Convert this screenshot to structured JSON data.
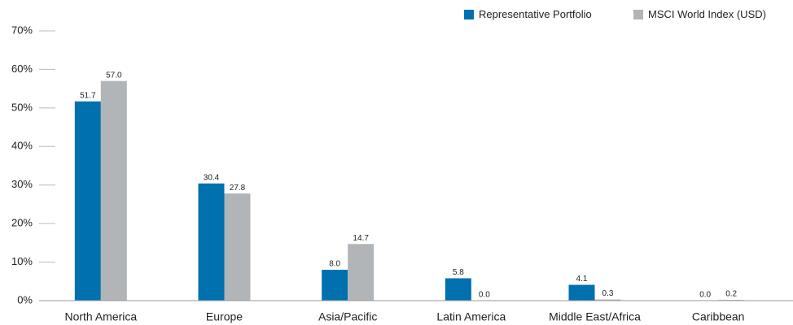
{
  "chart_data": {
    "type": "bar",
    "categories": [
      "North America",
      "Europe",
      "Asia/Pacific",
      "Latin America",
      "Middle East/Africa",
      "Caribbean"
    ],
    "series": [
      {
        "name": "Representative Portfolio",
        "color": "#0070ae",
        "values": [
          51.7,
          30.4,
          8.0,
          5.8,
          4.1,
          0.0
        ],
        "value_labels": [
          "51.7",
          "30.4",
          "8.0",
          "5.8",
          "4.1",
          "0.0"
        ]
      },
      {
        "name": "MSCI World Index (USD)",
        "color": "#b1b5b8",
        "values": [
          57.0,
          27.8,
          14.7,
          0.0,
          0.3,
          0.2
        ],
        "value_labels": [
          "57.0",
          "27.8",
          "14.7",
          "0.0",
          "0.3",
          "0.2"
        ]
      }
    ],
    "ylim": [
      0,
      70
    ],
    "yticks": [
      {
        "value": 0,
        "label": "0%"
      },
      {
        "value": 10,
        "label": "10%"
      },
      {
        "value": 20,
        "label": "20%"
      },
      {
        "value": 30,
        "label": "30%"
      },
      {
        "value": 40,
        "label": "40%"
      },
      {
        "value": 50,
        "label": "50%"
      },
      {
        "value": 60,
        "label": "60%"
      },
      {
        "value": 70,
        "label": "70%"
      }
    ],
    "legend": "top-right"
  }
}
